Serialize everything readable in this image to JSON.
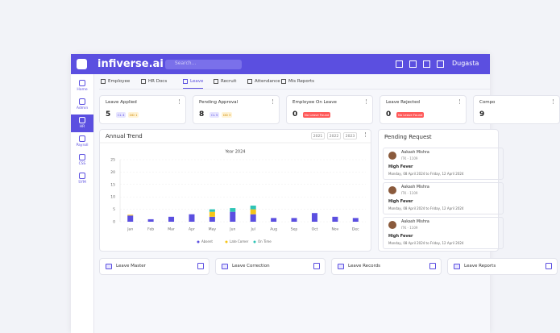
{
  "header": {
    "brand": "infiverse.ai",
    "search_placeholder": "Search...",
    "user": "Dugasta"
  },
  "sidebar": {
    "active": 2,
    "items": [
      "Home",
      "Admin",
      "HR",
      "Payroll",
      "CSS",
      "SYM"
    ]
  },
  "tabs": {
    "active": 2,
    "items": [
      "Employee",
      "HR Docs",
      "Leave",
      "Recruit",
      "Attendance",
      "Mis Reports"
    ]
  },
  "cards": [
    {
      "title": "Leave Applied",
      "value": "5",
      "badges": [
        "CL 4",
        "DD 1"
      ]
    },
    {
      "title": "Pending Approval",
      "value": "8",
      "badges": [
        "CL 5",
        "DD 3"
      ]
    },
    {
      "title": "Employee On Leave",
      "value": "0",
      "badges": [
        "No Leave Found"
      ]
    },
    {
      "title": "Leave Rejected",
      "value": "0",
      "badges": [
        "No Leave Found"
      ]
    },
    {
      "title": "Compo",
      "value": "9",
      "badges": []
    }
  ],
  "annual_trend": {
    "title": "Annual Trend",
    "years": [
      "2021",
      "2022",
      "2023"
    ],
    "chart_data": {
      "type": "stacked-bar",
      "title": "Year 2024",
      "categories": [
        "Jan",
        "Feb",
        "Mar",
        "Apr",
        "May",
        "Jun",
        "Jul",
        "Aug",
        "Sep",
        "Oct",
        "Nov",
        "Dec"
      ],
      "series": [
        {
          "name": "Absent",
          "color": "#5b4fe0",
          "values": [
            2.5,
            1,
            2,
            3,
            2,
            4,
            3,
            1.5,
            1.5,
            3.5,
            2,
            1.5
          ]
        },
        {
          "name": "Late Comer",
          "color": "#f5c518",
          "values": [
            0.3,
            0,
            0,
            0,
            2,
            0,
            2,
            0,
            0,
            0,
            0,
            0
          ]
        },
        {
          "name": "On Time",
          "color": "#2ec4b6",
          "values": [
            0,
            0,
            0,
            0,
            1,
            1.5,
            1.5,
            0,
            0,
            0,
            0,
            0
          ]
        }
      ],
      "ylim": [
        0,
        25
      ],
      "yticks": [
        0,
        5,
        10,
        15,
        20,
        25
      ],
      "grid": true
    }
  },
  "pending_request": {
    "title": "Pending Request",
    "items": [
      {
        "name": "Aakash Mishra",
        "id": "ITK - 1109",
        "reason": "High Fever",
        "dates": "Monday, 08 April 2024 to Friday, 12 April 2024"
      },
      {
        "name": "Aakash Mishra",
        "id": "ITK - 1109",
        "reason": "High Fever",
        "dates": "Monday, 08 April 2024 to Friday, 12 April 2024"
      },
      {
        "name": "Aakash Mishra",
        "id": "ITK - 1109",
        "reason": "High Fever",
        "dates": "Monday, 08 April 2024 to Friday, 12 April 2024"
      }
    ]
  },
  "quick_links": [
    "Leave Master",
    "Leave Correction",
    "Leave Records",
    "Leave Reports"
  ]
}
